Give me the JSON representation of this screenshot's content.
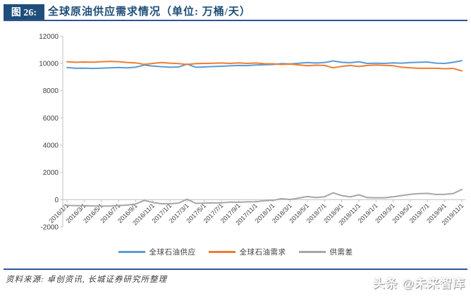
{
  "header": {
    "figure_label": "图 26:",
    "title": "全球原油供应需求情况（单位: 万桶/天）"
  },
  "footer": {
    "source_text": "资料来源: 卓创资讯, 长城证券研究所整理"
  },
  "watermark": "头条 @未来智库",
  "colors": {
    "header_blue": "#1F4E79",
    "rule_blue": "#2F5597",
    "axis": "#BFBFBF",
    "tick_text": "#404040",
    "supply": "#5B9BD5",
    "demand": "#ED7D31",
    "diff": "#A6A6A6"
  },
  "chart_data": {
    "type": "line",
    "title": "全球原油供应需求情况",
    "unit": "万桶/天",
    "grid": false,
    "legend_position": "bottom",
    "ylim": [
      -2000,
      12000
    ],
    "y_ticks": [
      -2000,
      0,
      2000,
      4000,
      6000,
      8000,
      10000,
      12000
    ],
    "x_tick_step": 2,
    "x": [
      "2016/1/1",
      "2016/2/1",
      "2016/3/1",
      "2016/4/1",
      "2016/5/1",
      "2016/6/1",
      "2016/7/1",
      "2016/8/1",
      "2016/9/1",
      "2016/10/1",
      "2016/11/1",
      "2016/12/1",
      "2017/1/1",
      "2017/2/1",
      "2017/3/1",
      "2017/4/1",
      "2017/5/1",
      "2017/6/1",
      "2017/7/1",
      "2017/8/1",
      "2017/9/1",
      "2017/10/1",
      "2017/11/1",
      "2017/12/1",
      "2018/1/1",
      "2018/2/1",
      "2018/3/1",
      "2018/4/1",
      "2018/5/1",
      "2018/6/1",
      "2018/7/1",
      "2018/8/1",
      "2018/9/1",
      "2018/10/1",
      "2018/11/1",
      "2018/12/1",
      "2019/1/1",
      "2019/2/1",
      "2019/3/1",
      "2019/4/1",
      "2019/5/1",
      "2019/6/1",
      "2019/7/1",
      "2019/8/1",
      "2019/9/1",
      "2019/10/1",
      "2019/11/1"
    ],
    "series": [
      {
        "name": "全球石油供应",
        "data_name": "supply-line",
        "color": "#5B9BD5",
        "values": [
          9700,
          9640,
          9650,
          9630,
          9650,
          9680,
          9700,
          9670,
          9720,
          9880,
          9800,
          9760,
          9720,
          9740,
          9950,
          9720,
          9740,
          9770,
          9790,
          9820,
          9850,
          9840,
          9880,
          9900,
          9920,
          9990,
          9960,
          10010,
          10060,
          10030,
          10060,
          10180,
          10080,
          10050,
          10120,
          10000,
          10020,
          10000,
          10040,
          10020,
          10060,
          10080,
          10100,
          10020,
          10000,
          10080,
          10200
        ]
      },
      {
        "name": "全球石油需求",
        "data_name": "demand-line",
        "color": "#ED7D31",
        "values": [
          10120,
          10080,
          10100,
          10090,
          10120,
          10150,
          10130,
          10070,
          10040,
          9930,
          10000,
          10060,
          10020,
          9990,
          9920,
          9990,
          10000,
          10010,
          10030,
          10000,
          10040,
          10000,
          10030,
          9980,
          9970,
          9920,
          9950,
          9890,
          9830,
          9870,
          9850,
          9680,
          9780,
          9850,
          9770,
          9850,
          9880,
          9860,
          9830,
          9720,
          9670,
          9640,
          9640,
          9640,
          9610,
          9630,
          9450
        ]
      },
      {
        "name": "供需差",
        "data_name": "diff-line",
        "color": "#A6A6A6",
        "values": [
          -420,
          -440,
          -450,
          -460,
          -470,
          -470,
          -430,
          -400,
          -320,
          -50,
          -200,
          -300,
          -300,
          -250,
          30,
          -270,
          -260,
          -240,
          -240,
          -180,
          -190,
          -160,
          -150,
          -80,
          -50,
          70,
          10,
          120,
          230,
          160,
          210,
          500,
          300,
          200,
          350,
          150,
          140,
          140,
          210,
          300,
          390,
          440,
          460,
          380,
          390,
          450,
          750
        ]
      }
    ]
  }
}
